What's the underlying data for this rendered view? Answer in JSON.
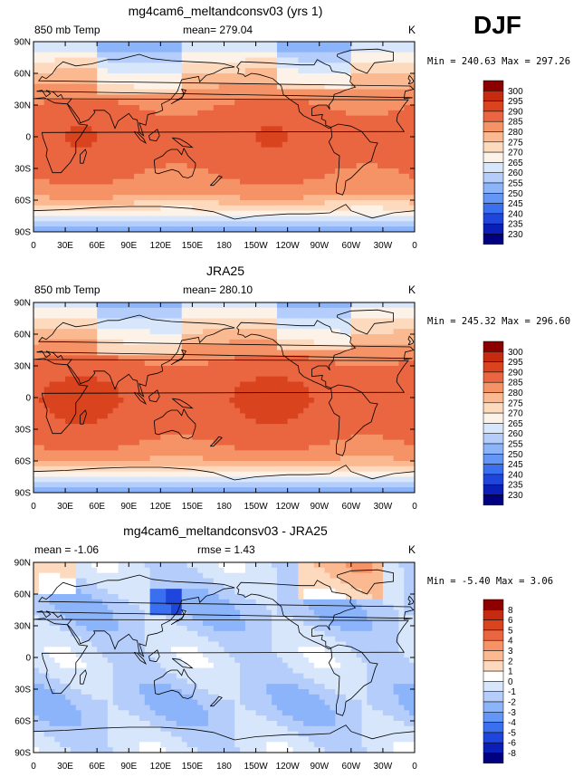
{
  "season": "DJF",
  "panels": [
    {
      "title": "mg4cam6_meltandconsv03 (yrs 1)",
      "left_label": "850 mb Temp",
      "center_label": "mean= 279.04",
      "right_label": "K",
      "stats": "Min = 240.63 Max = 297.26",
      "colorbar": [
        "300",
        "295",
        "290",
        "285",
        "280",
        "275",
        "270",
        "265",
        "260",
        "255",
        "250",
        "245",
        "240",
        "235",
        "230"
      ]
    },
    {
      "title": "JRA25",
      "left_label": "850 mb Temp",
      "center_label": "mean= 280.10",
      "right_label": "K",
      "stats": "Min = 245.32 Max = 296.60",
      "colorbar": [
        "300",
        "295",
        "290",
        "285",
        "280",
        "275",
        "270",
        "265",
        "260",
        "255",
        "250",
        "245",
        "240",
        "235",
        "230"
      ]
    },
    {
      "title": "mg4cam6_meltandconsv03 - JRA25",
      "left_label": "mean =  -1.06",
      "center_label": "rmse =   1.43",
      "right_label": "K",
      "stats": "Min =  -5.40 Max =    3.06",
      "colorbar": [
        "8",
        "6",
        "5",
        "4",
        "3",
        "2",
        "1",
        "0",
        "-1",
        "-2",
        "-3",
        "-4",
        "-5",
        "-6",
        "-8"
      ]
    }
  ],
  "lat_ticks": [
    "90N",
    "60N",
    "30N",
    "0",
    "30S",
    "60S",
    "90S"
  ],
  "lon_ticks": [
    "0",
    "30E",
    "60E",
    "90E",
    "120E",
    "150E",
    "180",
    "150W",
    "120W",
    "90W",
    "60W",
    "30W",
    "0"
  ],
  "colors": {
    "abs_scale": [
      "#000080",
      "#0a1fb8",
      "#1e46dc",
      "#3a6ff0",
      "#6496f5",
      "#8cb4fa",
      "#b4cdfa",
      "#d7e6fb",
      "#fdf2e7",
      "#fdd9be",
      "#fbb991",
      "#f59367",
      "#ea6640",
      "#d9441f",
      "#c42b10",
      "#8c0000"
    ],
    "diff_scale": [
      "#000080",
      "#0a1fb8",
      "#1e46dc",
      "#3a6ff0",
      "#6496f5",
      "#8cb4fa",
      "#b4cdfa",
      "#d7e6fb",
      "#ffffff",
      "#fdd9be",
      "#fbb991",
      "#f59367",
      "#ea6640",
      "#d9441f",
      "#c42b10",
      "#8c0000"
    ]
  }
}
